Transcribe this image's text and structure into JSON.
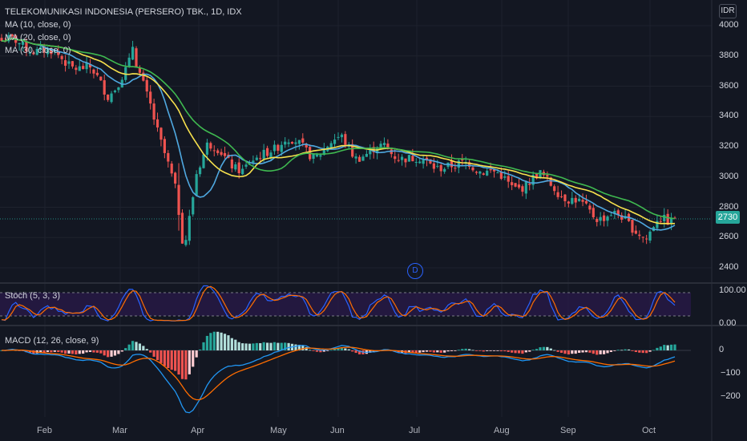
{
  "header": {
    "title": "TELEKOMUNIKASI INDONESIA (PERSERO) TBK., 1D, IDX",
    "currency": "IDR"
  },
  "legend": {
    "ma1": "MA (10, close, 0)",
    "ma2": "MA (20, close, 0)",
    "ma3": "MA (30, close, 0)"
  },
  "price_tag": "2730",
  "event_marker": "D",
  "colors": {
    "up": "#26a69a",
    "down": "#ef5350",
    "ma10": "#4fa8e0",
    "ma20": "#f7e14d",
    "ma30": "#3fb950",
    "stoch_k": "#2962ff",
    "stoch_d": "#ff6d00",
    "macd": "#2196f3",
    "signal": "#ff6d00"
  },
  "chart_data": [
    {
      "type": "candlestick",
      "title": "TELEKOMUNIKASI INDONESIA (PERSERO) TBK., 1D, IDX",
      "ylim": [
        2300,
        4050
      ],
      "yticks": [
        "4000",
        "3800",
        "3600",
        "3400",
        "3200",
        "3000",
        "2800",
        "2600",
        "2400"
      ],
      "x_ticks": [
        "Feb",
        "Mar",
        "Apr",
        "May",
        "Jun",
        "Jul",
        "Aug",
        "Sep",
        "Oct"
      ],
      "last_price": 2730,
      "anchors": [
        [
          0,
          3900
        ],
        [
          10,
          3850
        ],
        [
          20,
          3750
        ],
        [
          25,
          3700
        ],
        [
          30,
          3550
        ],
        [
          35,
          3700
        ],
        [
          37,
          3780
        ],
        [
          42,
          3500
        ],
        [
          46,
          3150
        ],
        [
          49,
          2900
        ],
        [
          51,
          2600
        ],
        [
          52,
          2600
        ],
        [
          55,
          3050
        ],
        [
          58,
          3200
        ],
        [
          62,
          3150
        ],
        [
          65,
          3100
        ],
        [
          68,
          3050
        ],
        [
          72,
          3100
        ],
        [
          76,
          3200
        ],
        [
          80,
          3250
        ],
        [
          84,
          3200
        ],
        [
          88,
          3150
        ],
        [
          92,
          3200
        ],
        [
          96,
          3250
        ],
        [
          100,
          3150
        ],
        [
          104,
          3150
        ],
        [
          108,
          3200
        ],
        [
          112,
          3150
        ],
        [
          116,
          3100
        ],
        [
          120,
          3100
        ],
        [
          124,
          3080
        ],
        [
          128,
          3050
        ],
        [
          132,
          3100
        ],
        [
          136,
          3050
        ],
        [
          140,
          3000
        ],
        [
          144,
          2950
        ],
        [
          148,
          2950
        ],
        [
          152,
          3000
        ],
        [
          156,
          2950
        ],
        [
          160,
          2850
        ],
        [
          164,
          2800
        ],
        [
          168,
          2750
        ],
        [
          172,
          2750
        ],
        [
          176,
          2700
        ],
        [
          180,
          2650
        ],
        [
          182,
          2600
        ],
        [
          185,
          2700
        ],
        [
          188,
          2700
        ],
        [
          190,
          2730
        ]
      ],
      "series": [
        {
          "name": "MA (10, close, 0)"
        },
        {
          "name": "MA (20, close, 0)"
        },
        {
          "name": "MA (30, close, 0)"
        }
      ]
    },
    {
      "type": "line",
      "title": "Stoch (5, 3, 3)",
      "ylim": [
        0,
        100
      ],
      "yticks": [
        "100.00",
        "0.00"
      ],
      "bands": [
        80,
        20
      ]
    },
    {
      "type": "bar",
      "title": "MACD (12, 26, close, 9)",
      "ylim": [
        -260,
        40
      ],
      "yticks": [
        "0",
        "−100",
        "−200"
      ]
    }
  ]
}
